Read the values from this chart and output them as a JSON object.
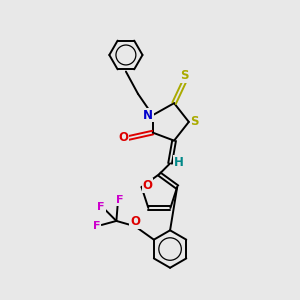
{
  "bg_color": "#e8e8e8",
  "bond_color": "#000000",
  "N_color": "#0000cc",
  "O_color": "#dd0000",
  "S_color": "#aaaa00",
  "F_color": "#cc00cc",
  "H_color": "#008888",
  "label_fontsize": 8.5,
  "bond_lw": 1.4,
  "xlim": [
    1.0,
    8.5
  ],
  "ylim": [
    0.5,
    11.5
  ]
}
